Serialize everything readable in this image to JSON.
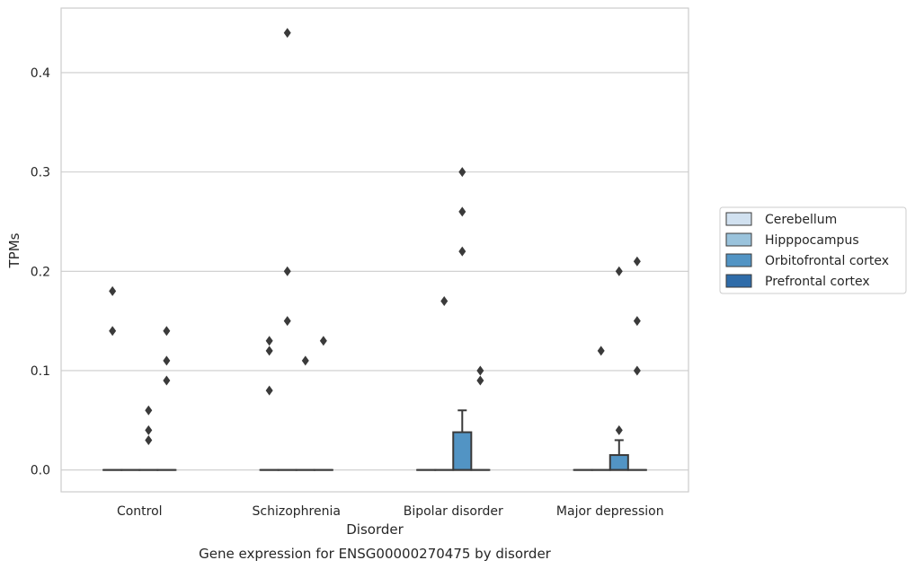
{
  "chart_data": {
    "type": "box",
    "title": "Gene expression for ENSG00000270475 by disorder",
    "xlabel": "Disorder",
    "ylabel": "TPMs",
    "ylim": [
      -0.022,
      0.465
    ],
    "yticks": [
      0.0,
      0.1,
      0.2,
      0.3,
      0.4
    ],
    "ytick_labels": [
      "0.0",
      "0.1",
      "0.2",
      "0.3",
      "0.4"
    ],
    "grid": "horizontal",
    "legend_placement": "right",
    "categories": [
      "Control",
      "Schizophrenia",
      "Bipolar disorder",
      "Major depression"
    ],
    "series": [
      {
        "name": "Cerebellum",
        "color": "#d1e1f0",
        "boxes": [
          {
            "q1": 0,
            "median": 0,
            "q3": 0,
            "whisker_low": 0,
            "whisker_high": 0,
            "outliers": [
              0.18,
              0.14
            ]
          },
          {
            "q1": 0,
            "median": 0,
            "q3": 0,
            "whisker_low": 0,
            "whisker_high": 0,
            "outliers": [
              0.13,
              0.12,
              0.08
            ]
          },
          {
            "q1": 0,
            "median": 0,
            "q3": 0,
            "whisker_low": 0,
            "whisker_high": 0,
            "outliers": []
          },
          {
            "q1": 0,
            "median": 0,
            "q3": 0,
            "whisker_low": 0,
            "whisker_high": 0,
            "outliers": []
          }
        ]
      },
      {
        "name": "Hipppocampus",
        "color": "#9ac3dc",
        "boxes": [
          {
            "q1": 0,
            "median": 0,
            "q3": 0,
            "whisker_low": 0,
            "whisker_high": 0,
            "outliers": []
          },
          {
            "q1": 0,
            "median": 0,
            "q3": 0,
            "whisker_low": 0,
            "whisker_high": 0,
            "outliers": [
              0.44,
              0.2,
              0.15
            ]
          },
          {
            "q1": 0,
            "median": 0,
            "q3": 0,
            "whisker_low": 0,
            "whisker_high": 0,
            "outliers": [
              0.17
            ]
          },
          {
            "q1": 0,
            "median": 0,
            "q3": 0,
            "whisker_low": 0,
            "whisker_high": 0,
            "outliers": [
              0.12
            ]
          }
        ]
      },
      {
        "name": "Orbitofrontal cortex",
        "color": "#5294c4",
        "boxes": [
          {
            "q1": 0,
            "median": 0,
            "q3": 0,
            "whisker_low": 0,
            "whisker_high": 0,
            "outliers": [
              0.06,
              0.04,
              0.03
            ]
          },
          {
            "q1": 0,
            "median": 0,
            "q3": 0,
            "whisker_low": 0,
            "whisker_high": 0,
            "outliers": [
              0.11
            ]
          },
          {
            "q1": 0,
            "median": 0,
            "q3": 0.038,
            "whisker_low": 0,
            "whisker_high": 0.06,
            "outliers": [
              0.3,
              0.26,
              0.22
            ]
          },
          {
            "q1": 0,
            "median": 0,
            "q3": 0.015,
            "whisker_low": 0,
            "whisker_high": 0.03,
            "outliers": [
              0.2,
              0.04
            ]
          }
        ]
      },
      {
        "name": "Prefrontal cortex",
        "color": "#2f6ca9",
        "boxes": [
          {
            "q1": 0,
            "median": 0,
            "q3": 0,
            "whisker_low": 0,
            "whisker_high": 0,
            "outliers": [
              0.14,
              0.11,
              0.09
            ]
          },
          {
            "q1": 0,
            "median": 0,
            "q3": 0,
            "whisker_low": 0,
            "whisker_high": 0,
            "outliers": [
              0.13
            ]
          },
          {
            "q1": 0,
            "median": 0,
            "q3": 0,
            "whisker_low": 0,
            "whisker_high": 0,
            "outliers": [
              0.1,
              0.09
            ]
          },
          {
            "q1": 0,
            "median": 0,
            "q3": 0,
            "whisker_low": 0,
            "whisker_high": 0,
            "outliers": [
              0.21,
              0.15,
              0.1
            ]
          }
        ]
      }
    ]
  }
}
